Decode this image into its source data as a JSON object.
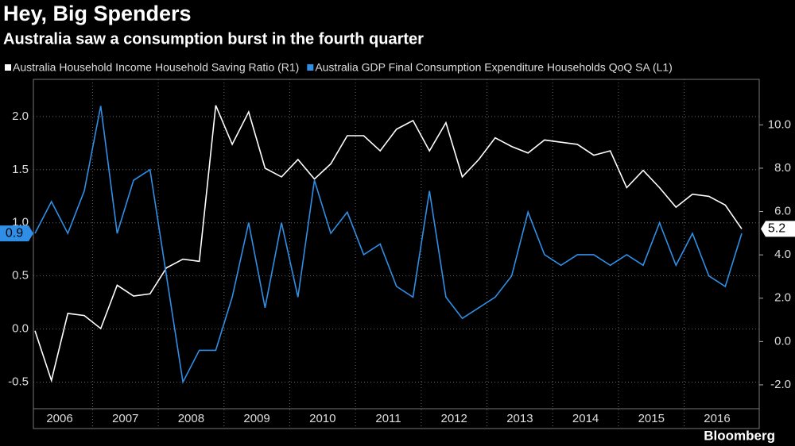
{
  "chart_data": {
    "type": "line",
    "title": "Hey, Big Spenders",
    "subtitle": "Australia saw a consumption burst in the fourth quarter",
    "source": "Bloomberg",
    "categories": [
      null,
      "2006",
      null,
      null,
      null,
      "2007",
      null,
      null,
      null,
      "2008",
      null,
      null,
      null,
      "2009",
      null,
      null,
      null,
      "2010",
      null,
      null,
      null,
      "2011",
      null,
      null,
      null,
      "2012",
      null,
      null,
      null,
      "2013",
      null,
      null,
      null,
      "2014",
      null,
      null,
      null,
      "2015",
      null,
      null,
      null,
      "2016",
      null,
      null
    ],
    "series": [
      {
        "name": "Australia Household Income Household Saving Ratio  (R1)",
        "color": "#ffffff",
        "axis": "y2",
        "values": [
          0.5,
          -1.8,
          1.3,
          1.2,
          0.6,
          2.6,
          2.1,
          2.2,
          3.4,
          3.8,
          3.7,
          10.9,
          9.1,
          10.6,
          8.0,
          7.6,
          8.4,
          7.5,
          8.2,
          9.5,
          9.5,
          8.8,
          9.8,
          10.2,
          8.8,
          10.1,
          7.6,
          8.4,
          9.4,
          9.0,
          8.7,
          9.3,
          9.2,
          9.1,
          8.6,
          8.8,
          7.1,
          7.9,
          7.1,
          6.2,
          6.8,
          6.7,
          6.3,
          5.2
        ]
      },
      {
        "name": "Australia GDP Final Consumption Expenditure Households QoQ SA  (L1)",
        "color": "#2f8fe6",
        "values": [
          0.9,
          1.2,
          0.9,
          1.3,
          2.1,
          0.9,
          1.4,
          1.5,
          0.5,
          -0.5,
          -0.2,
          -0.2,
          0.3,
          1.0,
          0.2,
          1.0,
          0.3,
          1.4,
          0.9,
          1.1,
          0.7,
          0.8,
          0.4,
          0.3,
          1.3,
          0.3,
          0.1,
          0.2,
          0.3,
          0.5,
          1.1,
          0.7,
          0.6,
          0.7,
          0.7,
          0.6,
          0.7,
          0.6,
          1.0,
          0.6,
          0.9,
          0.5,
          0.4,
          0.9
        ]
      }
    ],
    "ylim": [
      -0.75,
      2.35
    ],
    "yticks": [
      -0.5,
      {
        "value": 0,
        "label": "0.0"
      },
      0.5,
      {
        "value": 1,
        "label": "1.0"
      },
      1.5,
      {
        "value": 2,
        "label": "2.0"
      }
    ],
    "y2lim": [
      -3.1,
      12.1
    ],
    "y2ticks": [
      {
        "value": -2,
        "label": "-2.0"
      },
      {
        "value": 0,
        "label": "0.0"
      },
      {
        "value": 2,
        "label": "2.0"
      },
      {
        "value": 4,
        "label": "4.0"
      },
      {
        "value": 6,
        "label": "6.0"
      },
      {
        "value": 8,
        "label": "8.0"
      },
      {
        "value": 10,
        "label": "10.0"
      }
    ],
    "grid": true
  }
}
